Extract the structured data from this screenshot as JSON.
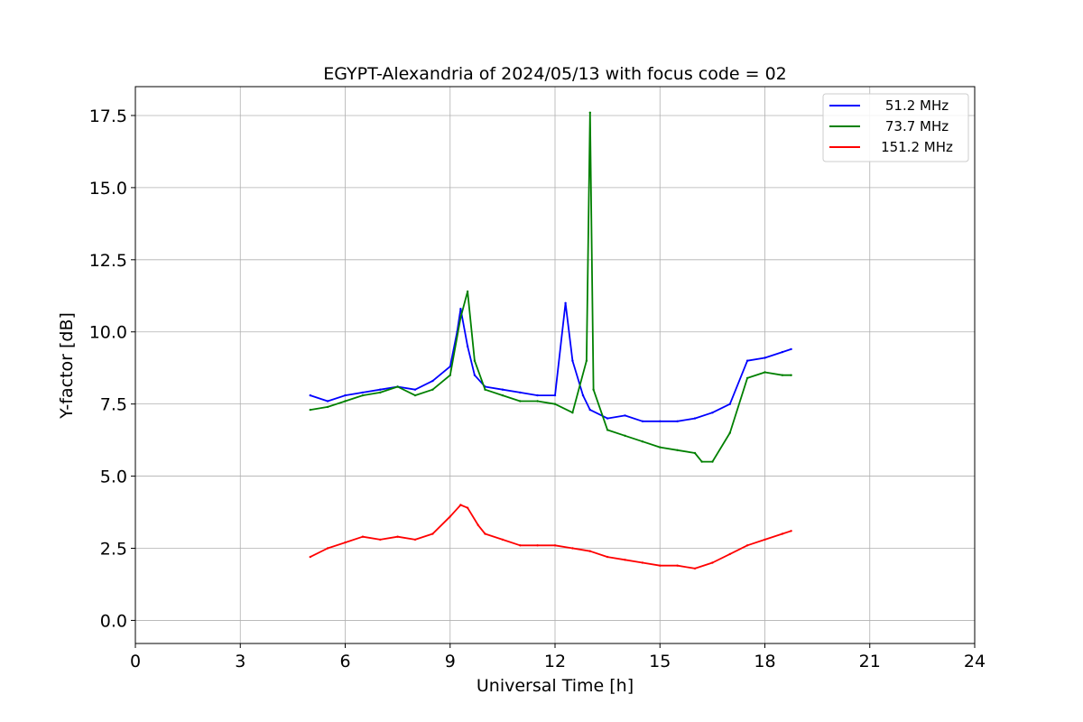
{
  "chart_data": {
    "type": "line",
    "title": "EGYPT-Alexandria of 2024/05/13 with focus code = 02",
    "xlabel": "Universal Time [h]",
    "ylabel": "Y-factor [dB]",
    "xlim": [
      0,
      24
    ],
    "ylim": [
      -0.8,
      18.5
    ],
    "xticks": [
      "0",
      "3",
      "6",
      "9",
      "12",
      "15",
      "18",
      "21",
      "24"
    ],
    "yticks": [
      "0.0",
      "2.5",
      "5.0",
      "7.5",
      "10.0",
      "12.5",
      "15.0",
      "17.5"
    ],
    "grid": true,
    "legend_position": "top-right",
    "series": [
      {
        "name": "51.2 MHz",
        "color": "#0000ff",
        "x": [
          5.0,
          5.5,
          6.0,
          6.5,
          7.0,
          7.5,
          8.0,
          8.5,
          9.0,
          9.2,
          9.3,
          9.5,
          9.7,
          10.0,
          10.5,
          11.0,
          11.5,
          12.0,
          12.3,
          12.5,
          12.8,
          13.0,
          13.5,
          14.0,
          14.5,
          15.0,
          15.5,
          16.0,
          16.5,
          17.0,
          17.5,
          18.0,
          18.5,
          18.75
        ],
        "y": [
          7.8,
          7.6,
          7.8,
          7.9,
          8.0,
          8.1,
          8.0,
          8.3,
          8.8,
          10.0,
          10.8,
          9.5,
          8.5,
          8.1,
          8.0,
          7.9,
          7.8,
          7.8,
          11.0,
          9.0,
          7.8,
          7.3,
          7.0,
          7.1,
          6.9,
          6.9,
          6.9,
          7.0,
          7.2,
          7.5,
          9.0,
          9.1,
          9.3,
          9.4
        ]
      },
      {
        "name": "73.7 MHz",
        "color": "#008000",
        "x": [
          5.0,
          5.5,
          6.0,
          6.5,
          7.0,
          7.5,
          8.0,
          8.5,
          9.0,
          9.3,
          9.5,
          9.7,
          10.0,
          10.5,
          11.0,
          11.5,
          12.0,
          12.5,
          12.9,
          13.0,
          13.1,
          13.5,
          14.0,
          14.5,
          15.0,
          15.5,
          16.0,
          16.2,
          16.5,
          17.0,
          17.5,
          18.0,
          18.5,
          18.75
        ],
        "y": [
          7.3,
          7.4,
          7.6,
          7.8,
          7.9,
          8.1,
          7.8,
          8.0,
          8.5,
          10.5,
          11.4,
          9.0,
          8.0,
          7.8,
          7.6,
          7.6,
          7.5,
          7.2,
          9.0,
          17.6,
          8.0,
          6.6,
          6.4,
          6.2,
          6.0,
          5.9,
          5.8,
          5.5,
          5.5,
          6.5,
          8.4,
          8.6,
          8.5,
          8.5
        ]
      },
      {
        "name": "151.2 MHz",
        "color": "#ff0000",
        "x": [
          5.0,
          5.5,
          6.0,
          6.5,
          7.0,
          7.5,
          8.0,
          8.5,
          9.0,
          9.3,
          9.5,
          9.8,
          10.0,
          10.5,
          11.0,
          11.5,
          12.0,
          12.5,
          13.0,
          13.5,
          14.0,
          14.5,
          15.0,
          15.5,
          16.0,
          16.5,
          17.0,
          17.5,
          18.0,
          18.5,
          18.75
        ],
        "y": [
          2.2,
          2.5,
          2.7,
          2.9,
          2.8,
          2.9,
          2.8,
          3.0,
          3.6,
          4.0,
          3.9,
          3.3,
          3.0,
          2.8,
          2.6,
          2.6,
          2.6,
          2.5,
          2.4,
          2.2,
          2.1,
          2.0,
          1.9,
          1.9,
          1.8,
          2.0,
          2.3,
          2.6,
          2.8,
          3.0,
          3.1
        ]
      }
    ]
  }
}
